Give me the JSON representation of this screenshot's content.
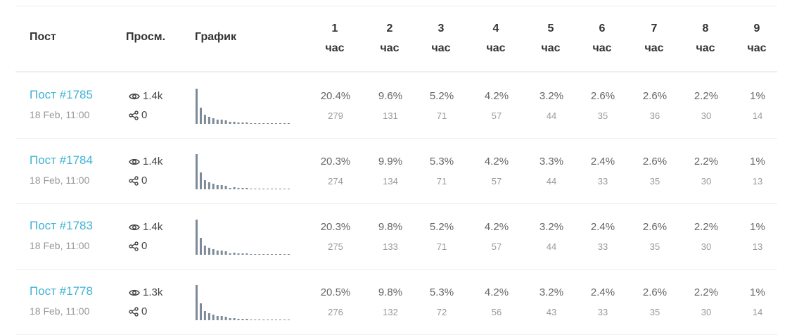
{
  "header": {
    "post": "Пост",
    "views": "Просм.",
    "graph": "График",
    "hours": [
      {
        "num": "1",
        "unit": "час"
      },
      {
        "num": "2",
        "unit": "час"
      },
      {
        "num": "3",
        "unit": "час"
      },
      {
        "num": "4",
        "unit": "час"
      },
      {
        "num": "5",
        "unit": "час"
      },
      {
        "num": "6",
        "unit": "час"
      },
      {
        "num": "7",
        "unit": "час"
      },
      {
        "num": "8",
        "unit": "час"
      },
      {
        "num": "9",
        "unit": "час"
      }
    ]
  },
  "rows": [
    {
      "title": "Пост #1785",
      "date": "18 Feb, 11:00",
      "views": "1.4k",
      "shares": "0",
      "hours": [
        {
          "pct": "20.4%",
          "count": "279"
        },
        {
          "pct": "9.6%",
          "count": "131"
        },
        {
          "pct": "5.2%",
          "count": "71"
        },
        {
          "pct": "4.2%",
          "count": "57"
        },
        {
          "pct": "3.2%",
          "count": "44"
        },
        {
          "pct": "2.6%",
          "count": "35"
        },
        {
          "pct": "2.6%",
          "count": "36"
        },
        {
          "pct": "2.2%",
          "count": "30"
        },
        {
          "pct": "1%",
          "count": "14"
        }
      ],
      "spark": [
        279,
        131,
        71,
        57,
        44,
        35,
        36,
        30,
        14,
        14,
        12,
        10,
        9,
        6,
        3,
        1,
        1,
        1,
        1,
        4,
        6,
        4,
        5
      ]
    },
    {
      "title": "Пост #1784",
      "date": "18 Feb, 11:00",
      "views": "1.4k",
      "shares": "0",
      "hours": [
        {
          "pct": "20.3%",
          "count": "274"
        },
        {
          "pct": "9.9%",
          "count": "134"
        },
        {
          "pct": "5.3%",
          "count": "71"
        },
        {
          "pct": "4.2%",
          "count": "57"
        },
        {
          "pct": "3.3%",
          "count": "44"
        },
        {
          "pct": "2.4%",
          "count": "33"
        },
        {
          "pct": "2.6%",
          "count": "35"
        },
        {
          "pct": "2.2%",
          "count": "30"
        },
        {
          "pct": "1%",
          "count": "13"
        }
      ],
      "spark": [
        274,
        134,
        71,
        57,
        44,
        33,
        35,
        30,
        13,
        14,
        12,
        10,
        9,
        6,
        3,
        1,
        1,
        1,
        1,
        4,
        6,
        4,
        5
      ]
    },
    {
      "title": "Пост #1783",
      "date": "18 Feb, 11:00",
      "views": "1.4k",
      "shares": "0",
      "hours": [
        {
          "pct": "20.3%",
          "count": "275"
        },
        {
          "pct": "9.8%",
          "count": "133"
        },
        {
          "pct": "5.2%",
          "count": "71"
        },
        {
          "pct": "4.2%",
          "count": "57"
        },
        {
          "pct": "3.2%",
          "count": "44"
        },
        {
          "pct": "2.4%",
          "count": "33"
        },
        {
          "pct": "2.6%",
          "count": "35"
        },
        {
          "pct": "2.2%",
          "count": "30"
        },
        {
          "pct": "1%",
          "count": "13"
        }
      ],
      "spark": [
        275,
        133,
        71,
        57,
        44,
        33,
        35,
        30,
        13,
        14,
        12,
        10,
        9,
        6,
        3,
        1,
        1,
        1,
        1,
        4,
        6,
        4,
        5
      ]
    },
    {
      "title": "Пост #1778",
      "date": "18 Feb, 11:00",
      "views": "1.3k",
      "shares": "0",
      "hours": [
        {
          "pct": "20.5%",
          "count": "276"
        },
        {
          "pct": "9.8%",
          "count": "132"
        },
        {
          "pct": "5.3%",
          "count": "72"
        },
        {
          "pct": "4.2%",
          "count": "56"
        },
        {
          "pct": "3.2%",
          "count": "43"
        },
        {
          "pct": "2.4%",
          "count": "33"
        },
        {
          "pct": "2.6%",
          "count": "35"
        },
        {
          "pct": "2.2%",
          "count": "30"
        },
        {
          "pct": "1%",
          "count": "14"
        }
      ],
      "spark": [
        276,
        132,
        72,
        56,
        43,
        33,
        35,
        30,
        14,
        14,
        12,
        10,
        9,
        6,
        3,
        1,
        1,
        1,
        1,
        4,
        6,
        4,
        5
      ]
    }
  ],
  "colors": {
    "link": "#3fb3d4",
    "bar": "#7d8a98",
    "divider": "#eeeeee"
  }
}
